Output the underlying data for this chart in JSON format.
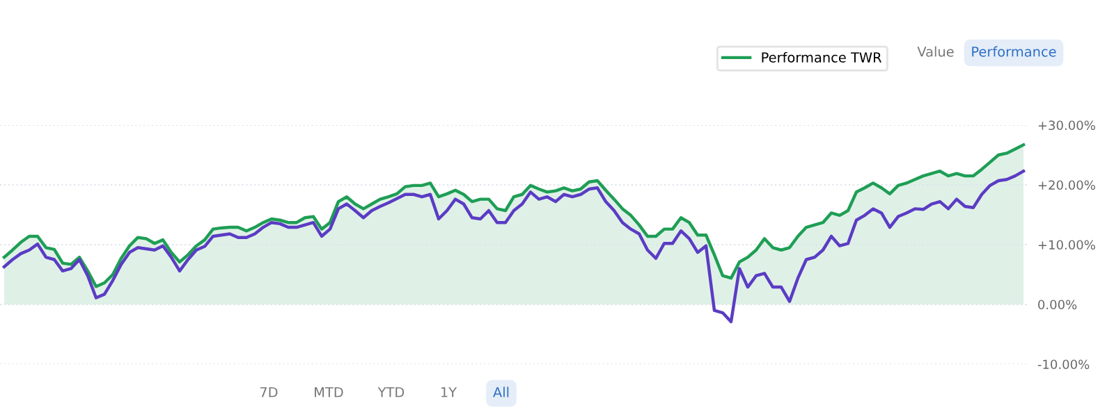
{
  "chart_data": {
    "type": "line",
    "categories": [
      null,
      null,
      null,
      null,
      null,
      null,
      null,
      null,
      null,
      null,
      null,
      null,
      null,
      null,
      null,
      null,
      null,
      null,
      null,
      null,
      null,
      null,
      null,
      null,
      null,
      null,
      null,
      null,
      null,
      null,
      null,
      null,
      null,
      null,
      null,
      null,
      null,
      null,
      null,
      null,
      null,
      null,
      null,
      null,
      null,
      null,
      null,
      null,
      null,
      null,
      null,
      null,
      null,
      null,
      null,
      null,
      null,
      null,
      null,
      null,
      null,
      null,
      null,
      null,
      null,
      null,
      null,
      null,
      null,
      null,
      null,
      null,
      null,
      null,
      null,
      null,
      null,
      null,
      null,
      null,
      null,
      null,
      null,
      null,
      null,
      null,
      null,
      null,
      null,
      null,
      null,
      null,
      null,
      null,
      null,
      null,
      null,
      null,
      null,
      null,
      null,
      null,
      null,
      null,
      null,
      null,
      null,
      null,
      null,
      null,
      null,
      null,
      null,
      null,
      null,
      null,
      null,
      null,
      null,
      null,
      null,
      null,
      null
    ],
    "series": [
      {
        "name": "Performance TWR",
        "type": "area",
        "color": "#1e9e55",
        "values": [
          7.9,
          9.1,
          10.4,
          11.4,
          11.4,
          9.5,
          9.2,
          6.9,
          6.7,
          7.9,
          5.6,
          3.0,
          3.6,
          5.0,
          7.7,
          9.8,
          11.2,
          11.0,
          10.2,
          10.8,
          8.7,
          7.1,
          8.3,
          9.8,
          10.8,
          12.6,
          12.8,
          12.9,
          12.9,
          12.3,
          12.9,
          13.7,
          14.3,
          14.1,
          13.7,
          13.7,
          14.5,
          14.7,
          12.6,
          13.7,
          17.2,
          18.0,
          16.8,
          16.0,
          16.8,
          17.6,
          18.0,
          18.5,
          19.7,
          19.9,
          19.9,
          20.3,
          18.0,
          18.5,
          19.1,
          18.4,
          17.2,
          17.6,
          17.6,
          16.0,
          15.7,
          18.0,
          18.4,
          19.9,
          19.3,
          18.8,
          19.0,
          19.5,
          19.0,
          19.3,
          20.5,
          20.7,
          19.1,
          17.6,
          16.0,
          14.9,
          13.3,
          11.4,
          11.4,
          12.6,
          12.6,
          14.5,
          13.7,
          11.6,
          11.6,
          8.3,
          4.8,
          4.4,
          7.1,
          7.9,
          9.1,
          11.0,
          9.5,
          9.1,
          9.5,
          11.4,
          12.9,
          13.3,
          13.7,
          15.3,
          14.9,
          15.7,
          18.8,
          19.5,
          20.3,
          19.5,
          18.5,
          19.9,
          20.3,
          20.9,
          21.5,
          21.9,
          22.3,
          21.5,
          21.9,
          21.5,
          21.5,
          22.6,
          23.8,
          25.0,
          25.3,
          26.0,
          26.7
        ]
      },
      {
        "color": "#5b3cc4",
        "values": [
          6.3,
          7.5,
          8.5,
          9.1,
          10.1,
          7.9,
          7.5,
          5.6,
          6.0,
          7.5,
          4.8,
          1.1,
          1.7,
          4.0,
          6.7,
          8.7,
          9.5,
          9.3,
          9.1,
          9.8,
          7.9,
          5.6,
          7.5,
          9.1,
          9.7,
          11.4,
          11.6,
          11.8,
          11.2,
          11.2,
          11.8,
          12.9,
          13.7,
          13.5,
          12.9,
          12.9,
          13.3,
          13.7,
          11.4,
          12.6,
          16.0,
          16.8,
          15.7,
          14.5,
          15.7,
          16.4,
          17.0,
          17.7,
          18.4,
          18.4,
          18.0,
          18.4,
          14.3,
          15.7,
          17.6,
          16.8,
          14.5,
          14.3,
          15.7,
          13.7,
          13.7,
          15.7,
          16.8,
          18.8,
          17.6,
          18.0,
          17.2,
          18.4,
          18.0,
          18.4,
          19.3,
          19.5,
          17.2,
          15.7,
          13.7,
          12.6,
          11.8,
          9.1,
          7.7,
          10.2,
          10.2,
          12.3,
          11.0,
          8.7,
          9.8,
          -1.0,
          -1.4,
          -2.9,
          6.0,
          2.9,
          4.8,
          5.2,
          2.9,
          2.9,
          0.5,
          4.4,
          7.5,
          7.9,
          9.1,
          11.4,
          9.8,
          10.2,
          14.1,
          14.9,
          16.0,
          15.3,
          12.9,
          14.7,
          15.3,
          16.0,
          15.9,
          16.8,
          17.2,
          16.0,
          17.6,
          16.4,
          16.2,
          18.4,
          19.9,
          20.7,
          20.9,
          21.5,
          22.3
        ]
      }
    ],
    "ylim": [
      -10,
      30
    ],
    "yticks": [
      {
        "value": -10,
        "label": "-10.00%"
      },
      {
        "value": 0,
        "label": "0.00%"
      },
      {
        "value": 10,
        "label": "+10.00%"
      },
      {
        "value": 20,
        "label": "+20.00%"
      },
      {
        "value": 30,
        "label": "+30.00%"
      }
    ],
    "grid": "y",
    "legend": "top right",
    "annotations": [
      "Value",
      "Performance",
      "7D",
      "MTD",
      "YTD",
      "1Y",
      "All"
    ]
  }
}
